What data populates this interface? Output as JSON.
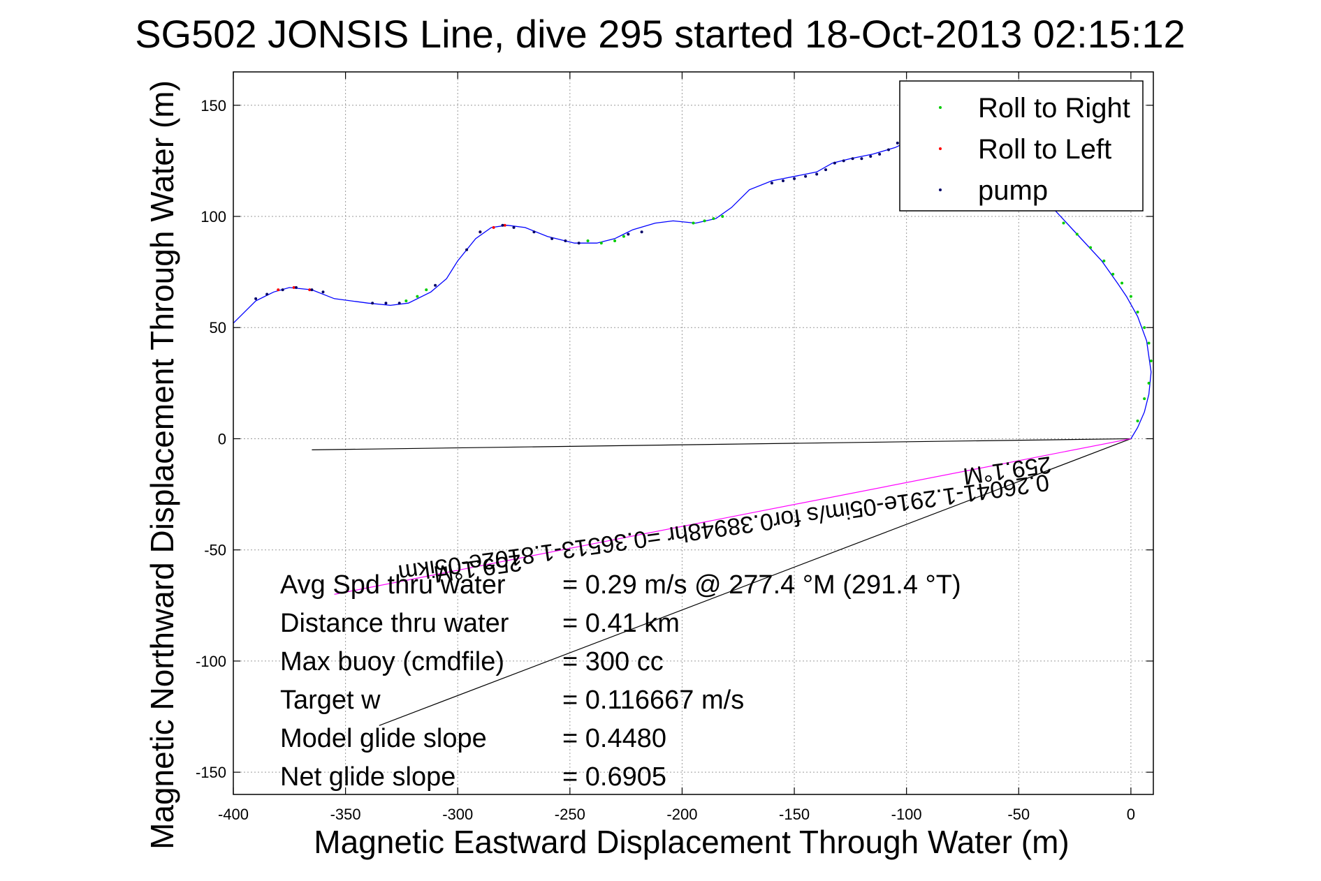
{
  "chart_data": {
    "type": "scatter",
    "title": "SG502 JONSIS Line, dive 295 started 18-Oct-2013 02:15:12",
    "xlabel": "Magnetic Eastward Displacement Through Water (m)",
    "ylabel": "Magnetic Northward Displacement Through Water (m)",
    "xlim": [
      -400,
      10
    ],
    "ylim": [
      -160,
      165
    ],
    "xticks": [
      -400,
      -350,
      -300,
      -250,
      -200,
      -150,
      -100,
      -50,
      0
    ],
    "yticks": [
      -150,
      -100,
      -50,
      0,
      50,
      100,
      150
    ],
    "grid": true,
    "legend_position": "top-right",
    "track": {
      "color": "#0000ff",
      "x": [
        -400,
        -390,
        -382,
        -375,
        -365,
        -355,
        -340,
        -330,
        -322,
        -312,
        -305,
        -300,
        -292,
        -285,
        -278,
        -270,
        -260,
        -248,
        -238,
        -230,
        -222,
        -212,
        -204,
        -194,
        -185,
        -178,
        -170,
        -160,
        -150,
        -140,
        -133,
        -125,
        -115,
        -105,
        -95,
        -85,
        -70,
        -60,
        -45,
        -35,
        -24,
        -13,
        -6,
        -2,
        3,
        7,
        9,
        8,
        6,
        3,
        0
      ],
      "y": [
        52,
        62,
        66,
        68,
        67,
        63,
        61,
        60,
        61,
        66,
        72,
        80,
        90,
        95,
        96,
        95,
        91,
        88,
        88,
        90,
        94,
        97,
        98,
        97,
        99,
        104,
        112,
        116,
        118,
        120,
        124,
        126,
        128,
        131,
        136,
        138,
        134,
        124,
        110,
        104,
        92,
        80,
        70,
        64,
        55,
        44,
        30,
        20,
        12,
        5,
        0
      ]
    },
    "series": [
      {
        "name": "Roll to Right",
        "color": "#00cc00",
        "x": [
          -323,
          -318,
          -314,
          -242,
          -236,
          -230,
          -226,
          -195,
          -190,
          -186,
          -182,
          -42,
          -36,
          -30,
          -24,
          -18,
          -12,
          -8,
          -4,
          0,
          3,
          6,
          8,
          9,
          8,
          6,
          3
        ],
        "y": [
          62,
          64,
          67,
          89,
          88,
          89,
          91,
          97,
          98,
          99,
          100,
          107,
          103,
          97,
          92,
          86,
          80,
          74,
          70,
          64,
          57,
          50,
          43,
          35,
          25,
          18,
          8
        ]
      },
      {
        "name": "Roll to Left",
        "color": "#ff0000",
        "x": [
          -380,
          -373,
          -366,
          -290,
          -284,
          -279
        ],
        "y": [
          67,
          68,
          67,
          93,
          95,
          96
        ]
      },
      {
        "name": "pump",
        "color": "#000066",
        "x": [
          -390,
          -385,
          -378,
          -372,
          -365,
          -360,
          -338,
          -332,
          -326,
          -310,
          -296,
          -290,
          -280,
          -275,
          -266,
          -258,
          -252,
          -246,
          -224,
          -218,
          -160,
          -155,
          -150,
          -145,
          -140,
          -136,
          -132,
          -128,
          -124,
          -120,
          -116,
          -112,
          -108,
          -104
        ],
        "y": [
          63,
          65,
          67,
          68,
          67,
          66,
          61,
          61,
          61,
          69,
          85,
          93,
          96,
          95,
          93,
          90,
          89,
          88,
          92,
          93,
          115,
          116,
          117,
          118,
          119,
          121,
          124,
          125,
          126,
          126,
          127,
          128,
          130,
          133
        ]
      }
    ],
    "reference_lines": [
      {
        "color": "#000000",
        "x": [
          0,
          -365
        ],
        "y": [
          0,
          -5
        ]
      },
      {
        "color": "#000000",
        "x": [
          0,
          -335
        ],
        "y": [
          0,
          -129
        ]
      },
      {
        "color": "#ff00ff",
        "x": [
          0,
          -355
        ],
        "y": [
          0,
          -70
        ]
      }
    ],
    "rotated_labels": [
      {
        "text": "259.1°M",
        "x": -36,
        "y": -8
      },
      {
        "text": "0.26041-1.291e-05im/s for0.38948hr =0.36513-1.8102e-05ikm",
        "x": -37,
        "y": -16
      },
      {
        "text": "259.1°M",
        "x": -272,
        "y": -52
      }
    ],
    "annotations": [
      {
        "label": "Avg Spd thru water",
        "value": "=  0.29 m/s @ 277.4 °M (291.4 °T)"
      },
      {
        "label": "Distance thru water",
        "value": "=  0.41 km"
      },
      {
        "label": "Max buoy (cmdfile)",
        "value": "= 300 cc"
      },
      {
        "label": "Target w",
        "value": "= 0.116667 m/s"
      },
      {
        "label": "Model glide slope",
        "value": "= 0.4480"
      },
      {
        "label": "Net glide slope",
        "value": "= 0.6905"
      }
    ]
  }
}
